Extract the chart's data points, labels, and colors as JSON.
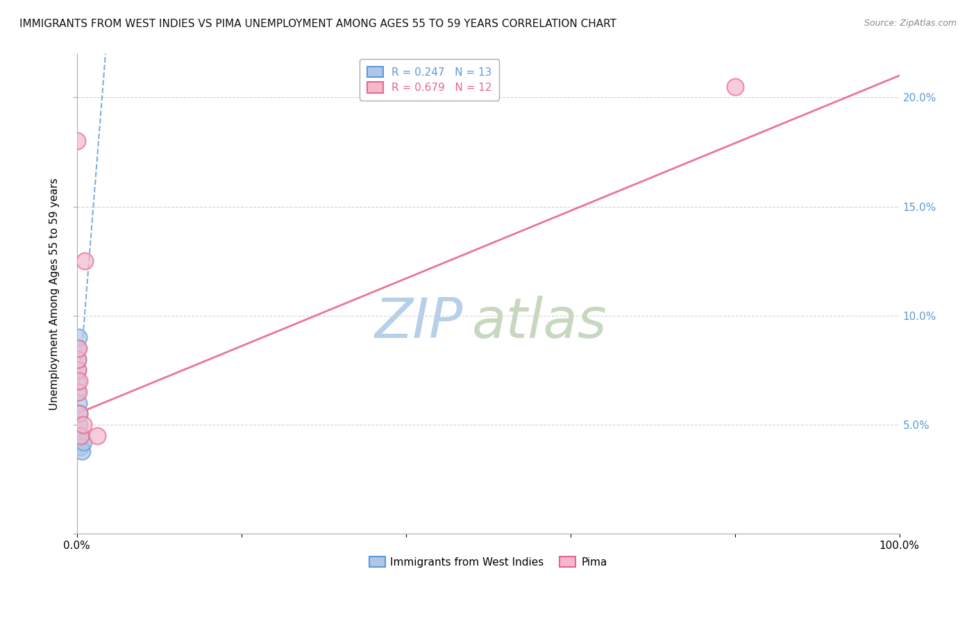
{
  "title": "IMMIGRANTS FROM WEST INDIES VS PIMA UNEMPLOYMENT AMONG AGES 55 TO 59 YEARS CORRELATION CHART",
  "source": "Source: ZipAtlas.com",
  "ylabel": "Unemployment Among Ages 55 to 59 years",
  "xlabel": "",
  "watermark_zip": "ZIP",
  "watermark_atlas": "atlas",
  "blue_label": "Immigrants from West Indies",
  "pink_label": "Pima",
  "blue_R": "0.247",
  "blue_N": "13",
  "pink_R": "0.679",
  "pink_N": "12",
  "xlim": [
    0,
    100
  ],
  "ylim": [
    0,
    22
  ],
  "xticks": [
    0,
    20,
    40,
    60,
    80,
    100
  ],
  "yticks": [
    0,
    5,
    10,
    15,
    20
  ],
  "blue_points_x": [
    0.05,
    0.08,
    0.1,
    0.12,
    0.15,
    0.18,
    0.2,
    0.25,
    0.3,
    0.4,
    0.5,
    0.6,
    0.8
  ],
  "blue_points_y": [
    6.5,
    7.0,
    7.5,
    8.0,
    8.5,
    9.0,
    6.0,
    5.5,
    5.0,
    4.5,
    4.0,
    3.8,
    4.2
  ],
  "pink_points_x": [
    0.05,
    0.1,
    0.15,
    0.18,
    0.2,
    0.25,
    0.3,
    0.5,
    0.8,
    1.0,
    2.5,
    80.0
  ],
  "pink_points_y": [
    18.0,
    7.5,
    8.0,
    8.5,
    6.5,
    7.0,
    5.5,
    4.5,
    5.0,
    12.5,
    4.5,
    20.5
  ],
  "blue_line_x_start": 0.0,
  "blue_line_x_end": 3.5,
  "blue_line_y_start": 5.5,
  "blue_line_y_end": 22.0,
  "pink_line_x_start": 0.0,
  "pink_line_x_end": 100.0,
  "pink_line_y_start": 5.5,
  "pink_line_y_end": 21.0,
  "bg_color": "#ffffff",
  "blue_color": "#aec6e8",
  "pink_color": "#f4b8cc",
  "blue_edge_color": "#5b9bd5",
  "pink_edge_color": "#e8668a",
  "blue_line_color": "#5b9bd5",
  "pink_line_color": "#e8668a",
  "grid_color": "#d0d0d0",
  "right_axis_color": "#5b9bd5",
  "title_fontsize": 11,
  "source_fontsize": 9,
  "axis_label_fontsize": 11,
  "tick_fontsize": 11,
  "legend_fontsize": 11,
  "watermark_fontsize_zip": 58,
  "watermark_fontsize_atlas": 58,
  "watermark_color_zip": "#b8cfe8",
  "watermark_color_atlas": "#c8d8c0"
}
